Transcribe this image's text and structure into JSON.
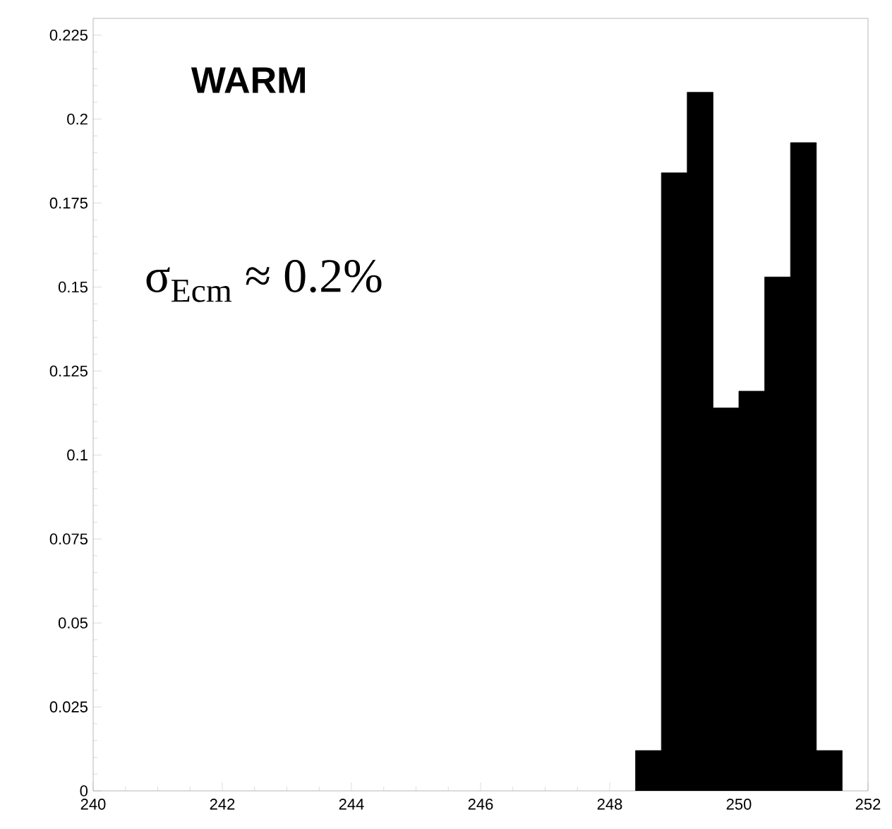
{
  "chart_data": {
    "type": "histogram",
    "bins": [
      248.4,
      248.8,
      249.2,
      249.6,
      250.0,
      250.4,
      250.8,
      251.2,
      251.6
    ],
    "values": [
      0.012,
      0.184,
      0.208,
      0.114,
      0.119,
      0.153,
      0.193,
      0.012
    ],
    "color": "#000000",
    "xlim": [
      240,
      252
    ],
    "xticks": [
      240,
      242,
      244,
      246,
      248,
      250,
      252
    ],
    "ylim": [
      0,
      0.23
    ],
    "yticks": [
      0,
      0.025,
      0.05,
      0.075,
      0.1,
      0.125,
      0.15,
      0.175,
      0.2,
      0.225
    ],
    "annotations": [
      "WARM",
      "σ$_{Ecm}$ ≈  0.2%"
    ]
  }
}
